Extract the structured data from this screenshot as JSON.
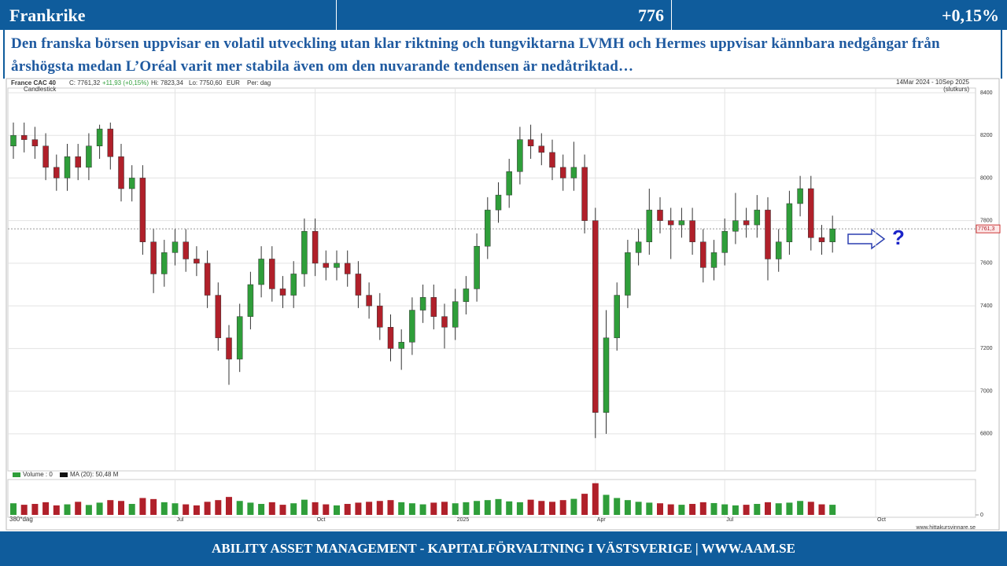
{
  "header": {
    "title": "Frankrike",
    "value": "776",
    "change": "+0,15%"
  },
  "description": "Den franska börsen uppvisar en volatil utveckling utan klar riktning och tungviktarna LVMH och Hermes uppvisar kännbara nedgångar från årshögsta medan L’Oréal varit mer stabila även om den nuvarande tendensen är nedåtriktad…",
  "footer": "ABILITY ASSET MANAGEMENT -  KAPITALFÖRVALTNING I VÄSTSVERIGE   |   WWW.AAM.SE",
  "chart_data": {
    "type": "candlestick",
    "info": [
      "France CAC 40",
      "C: 7761,32",
      "+11,93 (+0,15%)",
      "Hi: 7823,34",
      "Lo: 7750,60",
      "EUR",
      "Per: dag"
    ],
    "style_label": "Candlestick",
    "period": "14Mar 2024 - 10Sep 2025",
    "period_note": "(slutkurs)",
    "categories": [
      null,
      null,
      null,
      null,
      null,
      null,
      null,
      null,
      null,
      null,
      null,
      null,
      null,
      null,
      null,
      "Jul",
      null,
      null,
      null,
      null,
      null,
      null,
      null,
      null,
      null,
      null,
      null,
      null,
      "Oct",
      null,
      null,
      null,
      null,
      null,
      null,
      null,
      null,
      null,
      null,
      null,
      null,
      "2025",
      null,
      null,
      null,
      null,
      null,
      null,
      null,
      null,
      null,
      null,
      null,
      null,
      "Apr",
      null,
      null,
      null,
      null,
      null,
      null,
      null,
      null,
      null,
      null,
      null,
      "Jul",
      null,
      null,
      null,
      null,
      null,
      null,
      null,
      null,
      null,
      null,
      null,
      null,
      null,
      "Oct",
      null,
      null,
      null,
      null,
      null,
      null,
      null,
      null,
      null
    ],
    "open": [
      8150,
      8200,
      8180,
      8150,
      8050,
      8000,
      8100,
      8050,
      8150,
      8230,
      8100,
      7950,
      8000,
      7700,
      7550,
      7650,
      7700,
      7620,
      7600,
      7450,
      7250,
      7150,
      7350,
      7500,
      7620,
      7480,
      7450,
      7550,
      7750,
      7600,
      7580,
      7600,
      7550,
      7450,
      7400,
      7300,
      7200,
      7230,
      7380,
      7440,
      7350,
      7300,
      7420,
      7480,
      7680,
      7850,
      7920,
      8030,
      8180,
      8150,
      8120,
      8050,
      8000,
      8050,
      7800,
      6900,
      7250,
      7450,
      7650,
      7700,
      7850,
      7800,
      7780,
      7800,
      7700,
      7580,
      7650,
      7750,
      7800,
      7780,
      7850,
      7620,
      7700,
      7880,
      7950,
      7720,
      7700,
      null,
      null,
      null,
      null,
      null,
      null,
      null,
      null,
      null,
      null,
      null,
      null,
      null
    ],
    "high": [
      8260,
      8260,
      8240,
      8210,
      8110,
      8160,
      8160,
      8210,
      8250,
      8260,
      8160,
      8060,
      8060,
      7760,
      7710,
      7760,
      7760,
      7680,
      7660,
      7510,
      7310,
      7410,
      7560,
      7680,
      7680,
      7540,
      7610,
      7810,
      7810,
      7660,
      7660,
      7660,
      7610,
      7510,
      7460,
      7360,
      7290,
      7440,
      7500,
      7500,
      7410,
      7480,
      7540,
      7740,
      7910,
      7980,
      8090,
      8240,
      8250,
      8210,
      8180,
      8110,
      8170,
      8110,
      7860,
      7380,
      7510,
      7710,
      7760,
      7950,
      7910,
      7860,
      7860,
      7860,
      7760,
      7710,
      7810,
      7930,
      7860,
      7920,
      7910,
      7760,
      7940,
      8010,
      8010,
      7780,
      7823.34,
      null,
      null,
      null,
      null,
      null,
      null,
      null,
      null,
      null,
      null,
      null,
      null,
      null
    ],
    "low": [
      8090,
      8120,
      8090,
      7990,
      7940,
      7940,
      7990,
      7990,
      8090,
      8040,
      7890,
      7890,
      7640,
      7460,
      7490,
      7590,
      7560,
      7540,
      7390,
      7190,
      7030,
      7090,
      7290,
      7440,
      7420,
      7390,
      7390,
      7490,
      7540,
      7520,
      7520,
      7490,
      7390,
      7340,
      7240,
      7140,
      7100,
      7170,
      7320,
      7290,
      7200,
      7240,
      7360,
      7420,
      7620,
      7790,
      7860,
      7970,
      8090,
      8060,
      7990,
      7940,
      7940,
      7740,
      6780,
      6800,
      7190,
      7390,
      7590,
      7640,
      7740,
      7620,
      7720,
      7640,
      7510,
      7520,
      7590,
      7690,
      7720,
      7720,
      7520,
      7560,
      7640,
      7820,
      7660,
      7640,
      7650,
      null,
      null,
      null,
      null,
      null,
      null,
      null,
      null,
      null,
      null,
      null,
      null,
      null
    ],
    "close": [
      8200,
      8180,
      8150,
      8050,
      8000,
      8100,
      8050,
      8150,
      8230,
      8100,
      7950,
      8000,
      7700,
      7550,
      7650,
      7700,
      7620,
      7600,
      7450,
      7250,
      7150,
      7350,
      7500,
      7620,
      7480,
      7450,
      7550,
      7750,
      7600,
      7580,
      7600,
      7550,
      7450,
      7400,
      7300,
      7200,
      7230,
      7380,
      7440,
      7350,
      7300,
      7420,
      7480,
      7680,
      7850,
      7920,
      8030,
      8180,
      8150,
      8120,
      8050,
      8000,
      8050,
      7800,
      6900,
      7250,
      7450,
      7650,
      7700,
      7850,
      7800,
      7780,
      7800,
      7700,
      7580,
      7650,
      7750,
      7800,
      7780,
      7850,
      7620,
      7700,
      7880,
      7950,
      7720,
      7700,
      7761.32,
      null,
      null,
      null,
      null,
      null,
      null,
      null,
      null,
      null,
      null,
      null,
      null,
      null
    ],
    "up_color": "#2f9e3a",
    "down_color": "#b0202a",
    "ylim": [
      6626,
      8422
    ],
    "yticks": [
      6800,
      7000,
      7200,
      7400,
      7600,
      7800,
      8000,
      8200,
      8400
    ],
    "grid": true,
    "price_marker": {
      "value": 7761.3,
      "label": "7761,3"
    },
    "annotation": "?",
    "volume": {
      "legend": "Volume : 0",
      "ma_legend": "MA (20): 50,48 M",
      "range_label": "380*dag",
      "values": [
        55,
        48,
        52,
        60,
        45,
        50,
        62,
        47,
        58,
        70,
        66,
        52,
        80,
        75,
        60,
        55,
        50,
        45,
        62,
        70,
        85,
        66,
        58,
        52,
        60,
        48,
        55,
        72,
        60,
        50,
        45,
        52,
        58,
        62,
        66,
        70,
        60,
        55,
        50,
        58,
        62,
        55,
        60,
        66,
        70,
        75,
        64,
        60,
        72,
        66,
        62,
        70,
        76,
        100,
        150,
        95,
        80,
        70,
        62,
        58,
        55,
        50,
        48,
        52,
        60,
        56,
        50,
        45,
        48,
        52,
        60,
        55,
        58,
        66,
        62,
        50,
        48,
        null,
        null,
        null,
        null,
        null,
        null,
        null,
        null,
        null,
        null,
        null,
        null,
        null
      ],
      "ylim": [
        0,
        160
      ],
      "yticks": [
        0
      ]
    },
    "source": "www.hittakursvinnare.se"
  }
}
